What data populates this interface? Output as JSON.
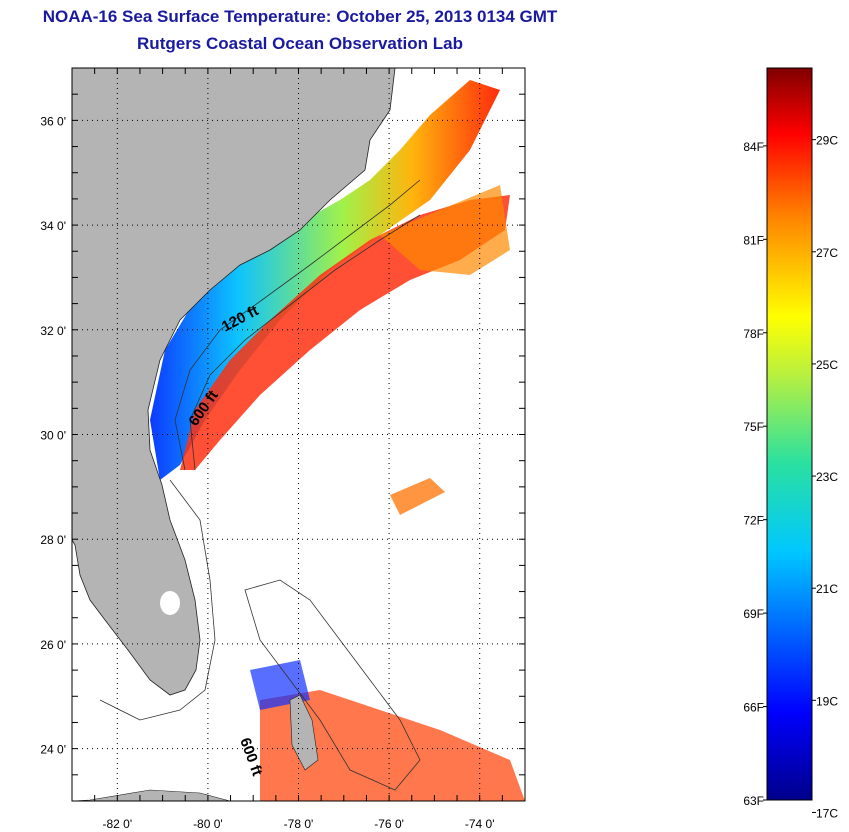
{
  "title": {
    "line1": "NOAA-16 Sea Surface Temperature:  October 25, 2013 0134 GMT",
    "line2": "Rutgers Coastal Ocean Observation Lab"
  },
  "map": {
    "lat_labels": [
      "36 0'",
      "34 0'",
      "32 0'",
      "30 0'",
      "28 0'",
      "26 0'",
      "24 0'"
    ],
    "lat_values": [
      36,
      34,
      32,
      30,
      28,
      26,
      24
    ],
    "lon_labels": [
      "-82 0'",
      "-80 0'",
      "-78 0'",
      "-76 0'",
      "-74 0'"
    ],
    "lon_values": [
      -82,
      -80,
      -78,
      -76,
      -74
    ],
    "lat_range": [
      23,
      37
    ],
    "lon_range": [
      -83,
      -73
    ],
    "grid": "dotted",
    "land_color": "#b4b4b4",
    "ocean_color": "#ffffff",
    "contour_labels": [
      "120 ft",
      "600 ft",
      "600 ft"
    ]
  },
  "colorbar": {
    "fahrenheit_labels": [
      "84F",
      "81F",
      "78F",
      "75F",
      "72F",
      "69F",
      "66F",
      "63F"
    ],
    "fahrenheit_values": [
      84,
      81,
      78,
      75,
      72,
      69,
      66,
      63
    ],
    "celsius_labels": [
      "29C",
      "27C",
      "25C",
      "23C",
      "21C",
      "19C",
      "17C"
    ],
    "celsius_values": [
      29,
      27,
      25,
      23,
      21,
      19,
      17
    ],
    "range_f": [
      63,
      86.5
    ],
    "colormap": "jet"
  }
}
